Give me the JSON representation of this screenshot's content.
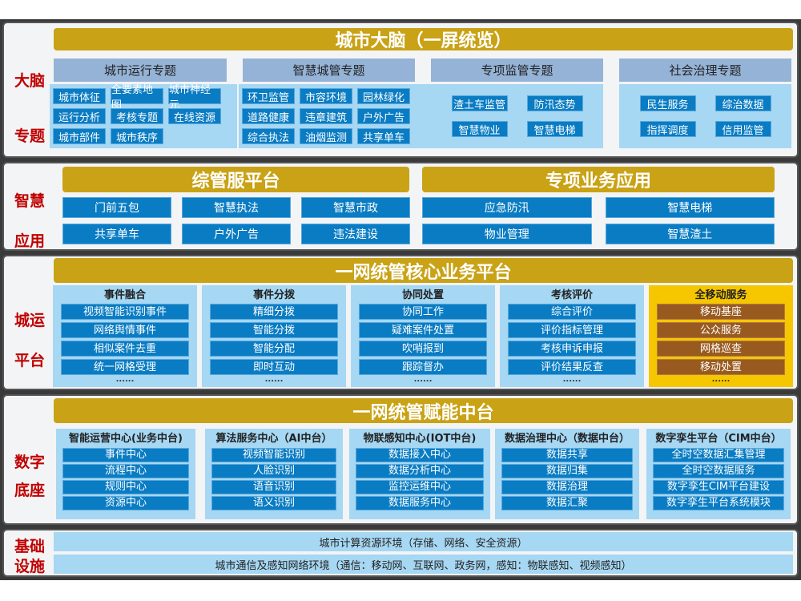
{
  "brain": {
    "side": [
      "大脑",
      "专题"
    ],
    "title": "城市大脑（一屏统览）",
    "groups": [
      {
        "header": "城市运行专题",
        "items": [
          "城市体征",
          "全要素地图",
          "城市神经元",
          "运行分析",
          "考核专题",
          "在线资源",
          "城市部件",
          "城市秩序"
        ]
      },
      {
        "header": "智慧城管专题",
        "items": [
          "环卫监管",
          "市容环境",
          "园林绿化",
          "道路健康",
          "违章建筑",
          "户外广告",
          "综合执法",
          "油烟监测",
          "共享单车"
        ]
      },
      {
        "header": "专项监管专题",
        "items": [
          "渣土车监管",
          "防汛态势",
          "智慧物业",
          "智慧电梯"
        ]
      },
      {
        "header": "社会治理专题",
        "items": [
          "民生服务",
          "综治数据",
          "指挥调度",
          "信用监管"
        ]
      }
    ]
  },
  "apps": {
    "side": [
      "智慧",
      "应用"
    ],
    "left": {
      "title": "综管服平台",
      "items": [
        "门前五包",
        "智慧执法",
        "智慧市政",
        "共享单车",
        "户外广告",
        "违法建设"
      ]
    },
    "right": {
      "title": "专项业务应用",
      "items": [
        "应急防汛",
        "智慧电梯",
        "物业管理",
        "智慧渣土"
      ]
    }
  },
  "core": {
    "side": [
      "城运",
      "平台"
    ],
    "title": "一网统管核心业务平台",
    "columns": [
      {
        "title": "事件融合",
        "items": [
          "视频智能识别事件",
          "网络舆情事件",
          "相似案件去重",
          "统一网格受理"
        ],
        "more": "......"
      },
      {
        "title": "事件分拨",
        "items": [
          "精细分拨",
          "智能分拨",
          "智能分配",
          "即时互动"
        ],
        "more": "......"
      },
      {
        "title": "协同处置",
        "items": [
          "协同工作",
          "疑难案件处置",
          "吹哨报到",
          "跟踪督办"
        ],
        "more": "......"
      },
      {
        "title": "考核评价",
        "items": [
          "综合评价",
          "评价指标管理",
          "考核申诉申报",
          "评价结果反查"
        ],
        "more": "......"
      },
      {
        "title": "全移动服务",
        "items": [
          "移动基座",
          "公众服务",
          "网格巡查",
          "移动处置"
        ],
        "more": "......"
      }
    ]
  },
  "enable": {
    "side": [
      "数字",
      "底座"
    ],
    "title": "一网统管赋能中台",
    "columns": [
      {
        "title": "智能运营中心(业务中台)",
        "items": [
          "事件中心",
          "流程中心",
          "规则中心",
          "资源中心"
        ]
      },
      {
        "title": "算法服务中心（AI中台）",
        "items": [
          "视频智能识别",
          "人脸识别",
          "语音识别",
          "语义识别"
        ]
      },
      {
        "title": "物联感知中心(IOT中台)",
        "items": [
          "数据接入中心",
          "数据分析中心",
          "监控运维中心",
          "数据服务中心"
        ]
      },
      {
        "title": "数据治理中心（数据中台）",
        "items": [
          "数据共享",
          "数据归集",
          "数据治理",
          "数据汇聚"
        ]
      },
      {
        "title": "数字孪生平台（CIM中台）",
        "items": [
          "全时空数据汇集管理",
          "全时空数据服务",
          "数字孪生CIM平台建设",
          "数字孪生平台系统模块"
        ]
      }
    ]
  },
  "infra": {
    "side": [
      "基础",
      "设施"
    ],
    "rows": [
      "城市计算资源环境（存储、网络、安全资源）",
      "城市通信及感知网络环境（通信：移动网、互联网、政务网，感知：物联感知、视频感知）"
    ]
  },
  "colors": {
    "gold": "#c9a216",
    "header": "#95b3d7",
    "light": "#a6d7f3",
    "button": "#0a7cc3",
    "label": "#c00000",
    "mobile": "#f6c600",
    "mobile_item": "#995a20"
  }
}
